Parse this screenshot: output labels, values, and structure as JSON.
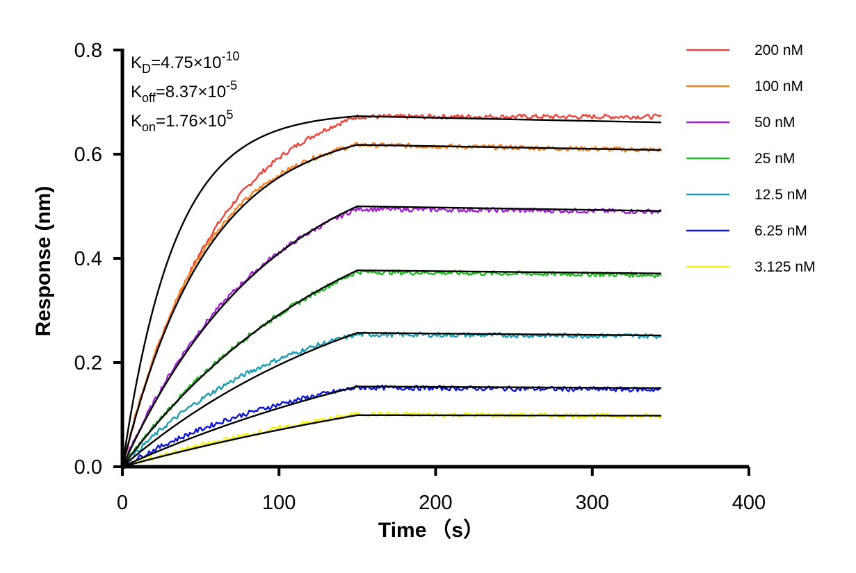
{
  "chart_data": {
    "type": "line",
    "xlabel": "Time （s）",
    "ylabel": "Response (nm)",
    "xlim": [
      0,
      400
    ],
    "ylim": [
      0,
      0.8
    ],
    "x_ticks": [
      "0",
      "100",
      "200",
      "300",
      "400"
    ],
    "y_ticks": [
      "0.0",
      "0.2",
      "0.4",
      "0.6",
      "0.8"
    ],
    "grid": false,
    "legend_position": "right",
    "annotations": [
      {
        "base": "K",
        "sub": "D",
        "mid": "=4.75×10",
        "sup": "-10"
      },
      {
        "base": "K",
        "sub": "off",
        "mid": "=8.37×10",
        "sup": "-5"
      },
      {
        "base": "K",
        "sub": "on",
        "mid": "=1.76×10",
        "sup": "5"
      }
    ],
    "association_end": 150,
    "dissociation_end": 344,
    "fit_color": "#000000",
    "series": [
      {
        "name": "200 nM",
        "color": "#e8453c",
        "data_plateau": 0.672,
        "fit_plateau": 0.673,
        "fit_end": 0.661,
        "data_end": 0.672,
        "data_rate": 0.0165,
        "fit_rate": 0.03
      },
      {
        "name": "100 nM",
        "color": "#f58220",
        "data_plateau": 0.618,
        "fit_plateau": 0.618,
        "fit_end": 0.608,
        "data_end": 0.608,
        "data_rate": 0.0195,
        "fit_rate": 0.0185
      },
      {
        "name": "50 nM",
        "color": "#a01fd0",
        "data_plateau": 0.495,
        "fit_plateau": 0.5,
        "fit_end": 0.491,
        "data_end": 0.49,
        "data_rate": 0.0115,
        "fit_rate": 0.0105
      },
      {
        "name": "25 nM",
        "color": "#1fba1f",
        "data_plateau": 0.374,
        "fit_plateau": 0.377,
        "fit_end": 0.371,
        "data_end": 0.368,
        "data_rate": 0.0075,
        "fit_rate": 0.007
      },
      {
        "name": "12.5 nM",
        "color": "#1c9cb3",
        "data_plateau": 0.254,
        "fit_plateau": 0.257,
        "fit_end": 0.252,
        "data_end": 0.251,
        "data_rate": 0.01,
        "fit_rate": 0.006
      },
      {
        "name": "6.25 nM",
        "color": "#0a14d6",
        "data_plateau": 0.152,
        "fit_plateau": 0.154,
        "fit_end": 0.151,
        "data_end": 0.148,
        "data_rate": 0.008,
        "fit_rate": 0.004
      },
      {
        "name": "3.125 nM",
        "color": "#f5f50a",
        "data_plateau": 0.101,
        "fit_plateau": 0.099,
        "fit_end": 0.098,
        "data_end": 0.097,
        "data_rate": 0.004,
        "fit_rate": 0.003
      }
    ]
  }
}
